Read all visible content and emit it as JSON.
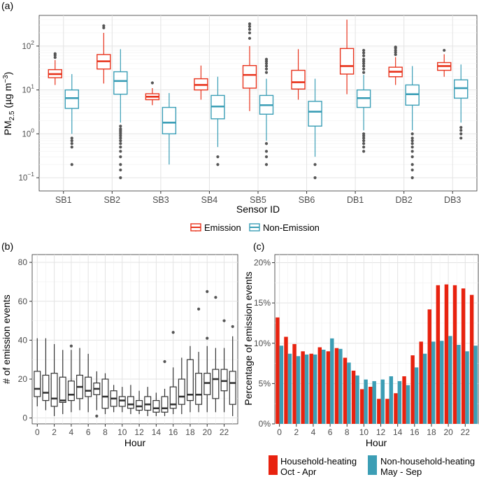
{
  "colors": {
    "emission": "#e8331c",
    "non_emission": "#3a9eb6",
    "household": "#e8220f",
    "non_household": "#3c9eb5",
    "box_b": "#333333",
    "outlier": "#555555"
  },
  "chart_data": [
    {
      "type": "boxplot",
      "panel": "(a)",
      "title": "",
      "xlabel": "Sensor ID",
      "ylabel_main": "PM",
      "ylabel_sub": "2.5",
      "ylabel_units_pre": " (µg m",
      "ylabel_units_sup": "−3",
      "ylabel_units_post": ")",
      "yscale": "log",
      "ylim": [
        0.05,
        500
      ],
      "y_ticks": [
        {
          "value": 0.1,
          "base": "10",
          "exp": "−1"
        },
        {
          "value": 1,
          "base": "10",
          "exp": "0"
        },
        {
          "value": 10,
          "base": "10",
          "exp": "1"
        },
        {
          "value": 100,
          "base": "10",
          "exp": "2"
        }
      ],
      "categories": [
        "SB1",
        "SB2",
        "SB3",
        "SB4",
        "SB5",
        "SB6",
        "DB1",
        "DB2",
        "DB3"
      ],
      "legend": {
        "entries": [
          "Emission",
          "Non-Emission"
        ],
        "position": "bottom"
      },
      "series": [
        {
          "name": "Emission",
          "boxes": [
            {
              "min": 13,
              "q1": 19,
              "median": 23,
              "q3": 29,
              "max": 48,
              "outliers": [
                55,
                62,
                67
              ]
            },
            {
              "min": 14,
              "q1": 30,
              "median": 45,
              "q3": 64,
              "max": 200,
              "outliers": [
                260,
                290
              ]
            },
            {
              "min": 4.5,
              "q1": 6,
              "median": 7,
              "q3": 8.2,
              "max": 11,
              "outliers": [
                14.5
              ]
            },
            {
              "min": 6,
              "q1": 10,
              "median": 13,
              "q3": 18,
              "max": 36,
              "outliers": []
            },
            {
              "min": 3.3,
              "q1": 11,
              "median": 22,
              "q3": 36,
              "max": 100,
              "outliers": [
                150,
                200,
                240,
                280,
                320
              ]
            },
            {
              "min": 6,
              "q1": 10.5,
              "median": 15,
              "q3": 28,
              "max": 85,
              "outliers": []
            },
            {
              "min": 8,
              "q1": 23,
              "median": 35,
              "q3": 88,
              "max": 400,
              "outliers": []
            },
            {
              "min": 13,
              "q1": 20,
              "median": 26,
              "q3": 33,
              "max": 56,
              "outliers": [
                64,
                72,
                80,
                90,
                95
              ]
            },
            {
              "min": 20,
              "q1": 28,
              "median": 35,
              "q3": 42,
              "max": 65,
              "outliers": [
                80
              ]
            }
          ]
        },
        {
          "name": "Non-Emission",
          "boxes": [
            {
              "min": 1.0,
              "q1": 3.8,
              "median": 6.5,
              "q3": 10,
              "max": 23,
              "outliers": [
                0.2,
                0.5,
                0.6,
                0.7,
                0.8
              ]
            },
            {
              "min": 1.8,
              "q1": 8,
              "median": 16,
              "q3": 26,
              "max": 85,
              "outliers": [
                0.1,
                0.15,
                0.2,
                0.3,
                0.4,
                0.5,
                0.6,
                0.7,
                0.8,
                0.9,
                1.0,
                1.1,
                1.2,
                1.3,
                1.5
              ]
            },
            {
              "min": 0.2,
              "q1": 1.0,
              "median": 1.8,
              "q3": 4,
              "max": 8.5,
              "outliers": []
            },
            {
              "min": 0.5,
              "q1": 2.2,
              "median": 4.2,
              "q3": 7.5,
              "max": 20,
              "outliers": [
                0.2,
                0.3
              ]
            },
            {
              "min": 0.7,
              "q1": 2.8,
              "median": 4.5,
              "q3": 7.5,
              "max": 18,
              "outliers": [
                0.2,
                0.3,
                0.4,
                0.6,
                25,
                30,
                35,
                40,
                45,
                50
              ]
            },
            {
              "min": 0.3,
              "q1": 1.5,
              "median": 3.2,
              "q3": 5.5,
              "max": 18,
              "outliers": [
                0.1,
                0.2
              ]
            },
            {
              "min": 1.2,
              "q1": 4,
              "median": 6.5,
              "q3": 10,
              "max": 22,
              "outliers": [
                0.4,
                0.5,
                0.6,
                0.7,
                0.8,
                0.9,
                1.0,
                25,
                30,
                35,
                40,
                45,
                50,
                60,
                70,
                80
              ]
            },
            {
              "min": 1.2,
              "q1": 4.5,
              "median": 8,
              "q3": 13,
              "max": 35,
              "outliers": [
                0.1,
                0.15,
                0.2,
                0.3,
                0.4,
                0.5,
                0.6,
                0.7,
                0.8,
                1.0
              ]
            },
            {
              "min": 1.8,
              "q1": 6.5,
              "median": 11,
              "q3": 17,
              "max": 38,
              "outliers": [
                0.8,
                1.0,
                1.2,
                1.4
              ]
            }
          ]
        }
      ]
    },
    {
      "type": "boxplot",
      "panel": "(b)",
      "title": "",
      "xlabel": "Hour",
      "ylabel": "# of emission events",
      "ylim": [
        -3,
        84
      ],
      "y_ticks": [
        0,
        20,
        40,
        60,
        80
      ],
      "x_ticks": [
        0,
        2,
        4,
        6,
        8,
        10,
        12,
        14,
        16,
        18,
        20,
        22
      ],
      "hours": [
        0,
        1,
        2,
        3,
        4,
        5,
        6,
        7,
        8,
        9,
        10,
        11,
        12,
        13,
        14,
        15,
        16,
        17,
        18,
        19,
        20,
        21,
        22,
        23
      ],
      "boxes": [
        {
          "min": 6,
          "q1": 11,
          "median": 15,
          "q3": 24,
          "max": 41,
          "outliers": []
        },
        {
          "min": 4,
          "q1": 9,
          "median": 13,
          "q3": 22,
          "max": 41,
          "outliers": []
        },
        {
          "min": 1,
          "q1": 6,
          "median": 10,
          "q3": 23,
          "max": 38,
          "outliers": []
        },
        {
          "min": 2,
          "q1": 8,
          "median": 9,
          "q3": 21,
          "max": 35,
          "outliers": []
        },
        {
          "min": 3,
          "q1": 9,
          "median": 12,
          "q3": 19,
          "max": 35,
          "outliers": [
            37
          ]
        },
        {
          "min": 4,
          "q1": 10,
          "median": 16,
          "q3": 22,
          "max": 36,
          "outliers": []
        },
        {
          "min": 3,
          "q1": 11,
          "median": 14,
          "q3": 21,
          "max": 33,
          "outliers": []
        },
        {
          "min": 4,
          "q1": 12,
          "median": 15,
          "q3": 18,
          "max": 24,
          "outliers": [
            1
          ]
        },
        {
          "min": 2,
          "q1": 5,
          "median": 11,
          "q3": 20,
          "max": 23,
          "outliers": []
        },
        {
          "min": 3,
          "q1": 6,
          "median": 10,
          "q3": 14,
          "max": 17,
          "outliers": []
        },
        {
          "min": 3,
          "q1": 6,
          "median": 9,
          "q3": 11,
          "max": 16,
          "outliers": []
        },
        {
          "min": 2,
          "q1": 5,
          "median": 7,
          "q3": 11,
          "max": 17,
          "outliers": []
        },
        {
          "min": 2,
          "q1": 4,
          "median": 6,
          "q3": 9,
          "max": 14,
          "outliers": []
        },
        {
          "min": 1,
          "q1": 4,
          "median": 7,
          "q3": 11,
          "max": 16,
          "outliers": []
        },
        {
          "min": 1,
          "q1": 3,
          "median": 5,
          "q3": 9,
          "max": 13,
          "outliers": []
        },
        {
          "min": 1,
          "q1": 3,
          "median": 5,
          "q3": 11,
          "max": 15,
          "outliers": [
            29
          ]
        },
        {
          "min": 2,
          "q1": 5,
          "median": 7,
          "q3": 16,
          "max": 26,
          "outliers": [
            44
          ]
        },
        {
          "min": 2,
          "q1": 7,
          "median": 11,
          "q3": 20,
          "max": 31,
          "outliers": []
        },
        {
          "min": 3,
          "q1": 9,
          "median": 12,
          "q3": 30,
          "max": 37,
          "outliers": []
        },
        {
          "min": 3,
          "q1": 7,
          "median": 12,
          "q3": 23,
          "max": 34,
          "outliers": [
            56
          ]
        },
        {
          "min": 3,
          "q1": 12,
          "median": 18,
          "q3": 23,
          "max": 37,
          "outliers": [
            41,
            65
          ]
        },
        {
          "min": 3,
          "q1": 10,
          "median": 20,
          "q3": 25,
          "max": 36,
          "outliers": [
            62
          ]
        },
        {
          "min": 3,
          "q1": 14,
          "median": 19,
          "q3": 25,
          "max": 36,
          "outliers": [
            50
          ]
        },
        {
          "min": 1,
          "q1": 7,
          "median": 18,
          "q3": 24,
          "max": 42,
          "outliers": [
            47
          ]
        }
      ]
    },
    {
      "type": "bar",
      "panel": "(c)",
      "title": "",
      "xlabel": "Hour",
      "ylabel": "Percentage of emission events",
      "ylim": [
        0,
        21
      ],
      "y_ticks": [
        {
          "value": 0,
          "label": "0%"
        },
        {
          "value": 5,
          "label": "5%"
        },
        {
          "value": 10,
          "label": "10%"
        },
        {
          "value": 15,
          "label": "15%"
        },
        {
          "value": 20,
          "label": "20%"
        }
      ],
      "x_ticks": [
        0,
        2,
        4,
        6,
        8,
        10,
        12,
        14,
        16,
        18,
        20,
        22
      ],
      "categories": [
        0,
        1,
        2,
        3,
        4,
        5,
        6,
        7,
        8,
        9,
        10,
        11,
        12,
        13,
        14,
        15,
        16,
        17,
        18,
        19,
        20,
        21,
        22,
        23
      ],
      "legend": {
        "position": "bottom"
      },
      "series": [
        {
          "name": "Household-heating",
          "period": "Oct - Apr",
          "values": [
            13.2,
            10.8,
            9.9,
            9.0,
            8.7,
            9.5,
            9.0,
            9.4,
            8.2,
            6.6,
            4.3,
            4.6,
            3.1,
            3.1,
            3.8,
            5.9,
            8.5,
            10.2,
            14.2,
            17.2,
            17.3,
            17.2,
            16.8,
            16.0
          ]
        },
        {
          "name": "Non-household-heating",
          "period": "May - Sep",
          "values": [
            9.7,
            8.7,
            8.4,
            8.6,
            8.6,
            9.2,
            10.6,
            9.3,
            7.6,
            6.0,
            5.5,
            5.3,
            5.5,
            5.9,
            5.3,
            4.8,
            7.0,
            8.7,
            10.2,
            10.3,
            10.9,
            9.8,
            9.0,
            9.7
          ]
        }
      ]
    }
  ]
}
